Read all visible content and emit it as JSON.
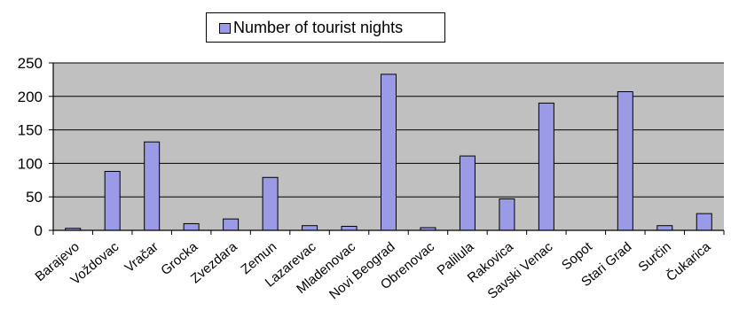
{
  "chart_data": {
    "type": "bar",
    "categories": [
      "Barajevo",
      "Voždovac",
      "Vračar",
      "Grocka",
      "Zvezdara",
      "Zemun",
      "Lazarevac",
      "Mladenovac",
      "Novi Beograd",
      "Obrenovac",
      "Palilula",
      "Rakovica",
      "Savski Venac",
      "Sopot",
      "Stari Grad",
      "Surčin",
      "Čukarica"
    ],
    "series": [
      {
        "name": "Number of tourist nights",
        "values": [
          3,
          88,
          132,
          10,
          17,
          79,
          7,
          6,
          233,
          4,
          111,
          47,
          190,
          0,
          207,
          7,
          25
        ]
      }
    ],
    "title": "",
    "xlabel": "",
    "ylabel": "",
    "ylim": [
      0,
      250
    ],
    "yticks": [
      "0",
      "50",
      "100",
      "150",
      "200",
      "250"
    ],
    "grid": "horizontal",
    "legend_position": "top",
    "colors": {
      "bar_fill": "#9a9ae6",
      "plot_bg": "#c0c0c0",
      "gridline": "#000000"
    }
  }
}
